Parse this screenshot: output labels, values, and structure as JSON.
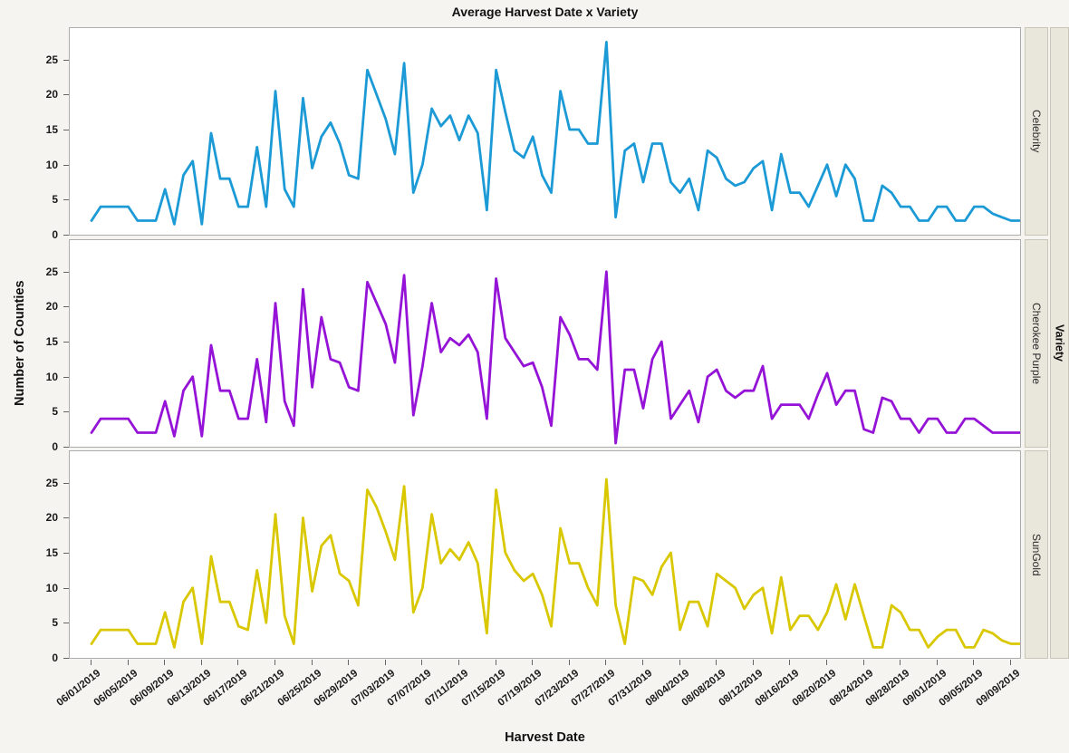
{
  "window_title": "Average Harvest Date x Variety",
  "chart_data": {
    "type": "line",
    "title": "Average Harvest Date x Variety",
    "xlabel": "Harvest Date",
    "ylabel": "Number of Counties",
    "panel_strip_title": "Variety",
    "panels": [
      "Celebrity",
      "Cherokee Purple",
      "SunGold"
    ],
    "x_start_date": "06/01/2019",
    "x_interval": "1 day",
    "x_tick_labels": [
      "06/01/2019",
      "06/05/2019",
      "06/09/2019",
      "06/13/2019",
      "06/17/2019",
      "06/21/2019",
      "06/25/2019",
      "06/29/2019",
      "07/03/2019",
      "07/07/2019",
      "07/11/2019",
      "07/15/2019",
      "07/19/2019",
      "07/23/2019",
      "07/27/2019",
      "07/31/2019",
      "08/04/2019",
      "08/08/2019",
      "08/12/2019",
      "08/16/2019",
      "08/20/2019",
      "08/24/2019",
      "08/28/2019",
      "09/01/2019",
      "09/05/2019",
      "09/09/2019"
    ],
    "y_ticks": [
      0,
      5,
      10,
      15,
      20,
      25
    ],
    "ylim": [
      0,
      29.5
    ],
    "grid": "off",
    "legend": "right panel strips",
    "series": [
      {
        "name": "Celebrity",
        "color": "#1C9AD6",
        "values": [
          2,
          4,
          4,
          4,
          4,
          2,
          2,
          2,
          6.5,
          1.5,
          8.5,
          10.5,
          1.5,
          14.5,
          8,
          8,
          4,
          4,
          12.5,
          4,
          20.5,
          6.5,
          4,
          19.5,
          9.5,
          14,
          16,
          13,
          8.5,
          8,
          23.5,
          20,
          16.5,
          11.5,
          24.5,
          6,
          10,
          18,
          15.5,
          17,
          13.5,
          17,
          14.5,
          3.5,
          23.5,
          17.5,
          12,
          11,
          14,
          8.5,
          6,
          20.5,
          15,
          15,
          13,
          13,
          27.5,
          2.5,
          12,
          13,
          7.5,
          13,
          13,
          7.5,
          6,
          8,
          3.5,
          12,
          11,
          8,
          7,
          7.5,
          9.5,
          10.5,
          3.5,
          11.5,
          6,
          6,
          4,
          7,
          10,
          5.5,
          10,
          8,
          2,
          2,
          7,
          6,
          4,
          4,
          2,
          2,
          4,
          4,
          2,
          2,
          4,
          4,
          3,
          2.5,
          2,
          2
        ]
      },
      {
        "name": "Cherokee Purple",
        "color": "#9513D6",
        "values": [
          2,
          4,
          4,
          4,
          4,
          2,
          2,
          2,
          6.5,
          1.5,
          8,
          10,
          1.5,
          14.5,
          8,
          8,
          4,
          4,
          12.5,
          3.5,
          20.5,
          6.5,
          3,
          22.5,
          8.5,
          18.5,
          12.5,
          12,
          8.5,
          8,
          23.5,
          20.5,
          17.5,
          12,
          24.5,
          4.5,
          11.5,
          20.5,
          13.5,
          15.5,
          14.5,
          16,
          13.5,
          4,
          24,
          15.5,
          13.5,
          11.5,
          12,
          8.5,
          3,
          18.5,
          16,
          12.5,
          12.5,
          11,
          25,
          0.5,
          11,
          11,
          5.5,
          12.5,
          15,
          4,
          6,
          8,
          3.5,
          10,
          11,
          8,
          7,
          8,
          8,
          11.5,
          4,
          6,
          6,
          6,
          4,
          7.5,
          10.5,
          6,
          8,
          8,
          2.5,
          2,
          7,
          6.5,
          4,
          4,
          2,
          4,
          4,
          2,
          2,
          4,
          4,
          3,
          2,
          2,
          2,
          2
        ]
      },
      {
        "name": "SunGold",
        "color": "#D9C700",
        "values": [
          2,
          4,
          4,
          4,
          4,
          2,
          2,
          2,
          6.5,
          1.5,
          8,
          10,
          2,
          14.5,
          8,
          8,
          4.5,
          4,
          12.5,
          5,
          20.5,
          6,
          2,
          20,
          9.5,
          16,
          17.5,
          12,
          11,
          7.5,
          24,
          21.5,
          18,
          14,
          24.5,
          6.5,
          10,
          20.5,
          13.5,
          15.5,
          14,
          16.5,
          13.5,
          3.5,
          24,
          15,
          12.5,
          11,
          12,
          9,
          4.5,
          18.5,
          13.5,
          13.5,
          10,
          7.5,
          25.5,
          7.5,
          2,
          11.5,
          11,
          9,
          13,
          15,
          4,
          8,
          8,
          4.5,
          12,
          11,
          10,
          7,
          9,
          10,
          3.5,
          11.5,
          4,
          6,
          6,
          4,
          6.5,
          10.5,
          5.5,
          10.5,
          6,
          1.5,
          1.5,
          7.5,
          6.5,
          4,
          4,
          1.5,
          3,
          4,
          4,
          1.5,
          1.5,
          4,
          3.5,
          2.5,
          2,
          2
        ]
      }
    ]
  },
  "colors": {
    "background": "#F5F4F1",
    "panel_background": "#FFFFFF",
    "panel_border": "#ADADAD",
    "strip_background": "#E9E6DB",
    "strip_border": "#C9C6B8",
    "text": "#1A1A1A"
  }
}
